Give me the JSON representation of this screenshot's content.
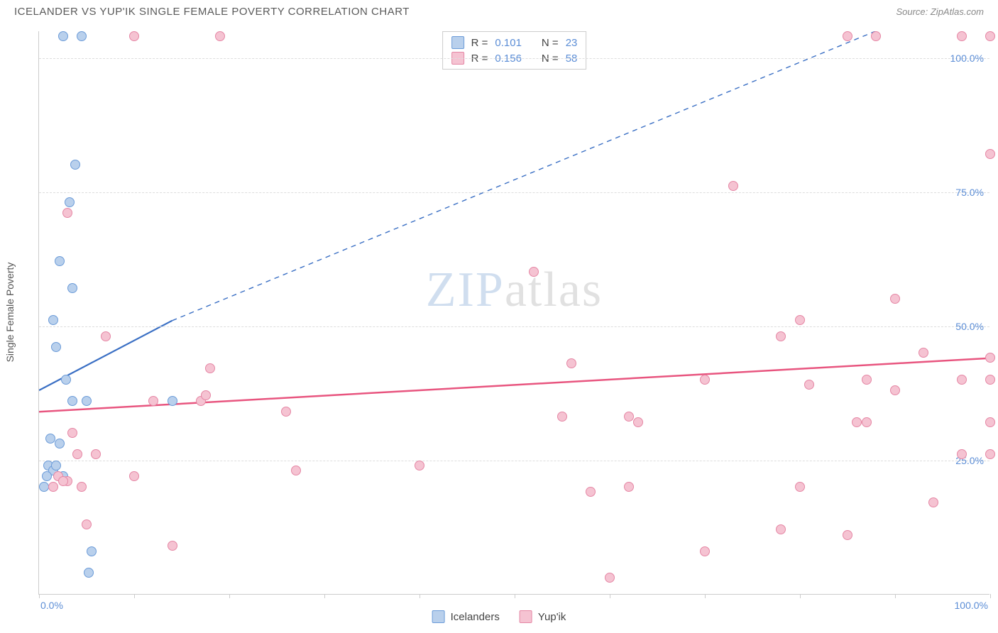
{
  "title": "ICELANDER VS YUP'IK SINGLE FEMALE POVERTY CORRELATION CHART",
  "source_label": "Source: ZipAtlas.com",
  "y_axis_label": "Single Female Poverty",
  "watermark": {
    "part1": "ZIP",
    "part2": "atlas"
  },
  "chart": {
    "type": "scatter",
    "xlim": [
      0,
      100
    ],
    "ylim": [
      0,
      105
    ],
    "x_ticks": [
      0,
      50,
      100
    ],
    "x_tick_labels": [
      "0.0%",
      "",
      "100.0%"
    ],
    "x_minor_ticks": [
      10,
      20,
      30,
      40,
      60,
      70,
      80,
      90
    ],
    "y_ticks": [
      25,
      50,
      75,
      100
    ],
    "y_tick_labels": [
      "25.0%",
      "50.0%",
      "75.0%",
      "100.0%"
    ],
    "grid_color": "#dddddd",
    "axis_color": "#cccccc",
    "background_color": "#ffffff",
    "tick_label_color": "#5b8dd6",
    "tick_label_fontsize": 14,
    "marker_radius": 7,
    "marker_stroke_width": 1.2,
    "marker_fill_opacity": 0.25
  },
  "series": [
    {
      "name": "Icelanders",
      "color_stroke": "#6b9bd8",
      "color_fill": "#b9d0ec",
      "trend_line": {
        "color": "#3a6fc4",
        "width": 2.2,
        "solid_from_x": 0,
        "solid_to_x": 14,
        "y_at_x0": 38,
        "y_at_x14": 51,
        "dashed_to_x": 88,
        "y_at_dashed_end": 105
      },
      "stats": {
        "R": "0.101",
        "N": "23"
      },
      "points": [
        [
          2.5,
          104
        ],
        [
          4.5,
          104
        ],
        [
          3.8,
          80
        ],
        [
          3.2,
          73
        ],
        [
          2.2,
          62
        ],
        [
          3.5,
          57
        ],
        [
          1.5,
          51
        ],
        [
          1.8,
          46
        ],
        [
          2.8,
          40
        ],
        [
          3.5,
          36
        ],
        [
          5,
          36
        ],
        [
          14,
          36
        ],
        [
          1.2,
          29
        ],
        [
          2.2,
          28
        ],
        [
          1.0,
          24
        ],
        [
          1.5,
          23
        ],
        [
          0.8,
          22
        ],
        [
          1.8,
          24
        ],
        [
          2.5,
          22
        ],
        [
          0.5,
          20
        ],
        [
          5.5,
          8
        ],
        [
          5.2,
          4
        ]
      ]
    },
    {
      "name": "Yup'ik",
      "color_stroke": "#e586a4",
      "color_fill": "#f5c3d2",
      "trend_line": {
        "color": "#e8557f",
        "width": 2.5,
        "solid_from_x": 0,
        "solid_to_x": 100,
        "y_at_x0": 34,
        "y_at_x100": 44
      },
      "stats": {
        "R": "0.156",
        "N": "58"
      },
      "points": [
        [
          10,
          104
        ],
        [
          19,
          104
        ],
        [
          85,
          104
        ],
        [
          88,
          104
        ],
        [
          97,
          104
        ],
        [
          100,
          104
        ],
        [
          3.0,
          71
        ],
        [
          100,
          82
        ],
        [
          73,
          76
        ],
        [
          7,
          48
        ],
        [
          52,
          60
        ],
        [
          90,
          55
        ],
        [
          18,
          42
        ],
        [
          12,
          36
        ],
        [
          17,
          36
        ],
        [
          17.5,
          37
        ],
        [
          26,
          34
        ],
        [
          56,
          43
        ],
        [
          62,
          33
        ],
        [
          63,
          32
        ],
        [
          70,
          40
        ],
        [
          78,
          48
        ],
        [
          80,
          51
        ],
        [
          81,
          39
        ],
        [
          87,
          40
        ],
        [
          90,
          38
        ],
        [
          93,
          45
        ],
        [
          97,
          40
        ],
        [
          100,
          40
        ],
        [
          100,
          44
        ],
        [
          3.5,
          30
        ],
        [
          4,
          26
        ],
        [
          2,
          22
        ],
        [
          3,
          21
        ],
        [
          1.5,
          20
        ],
        [
          2.5,
          21
        ],
        [
          4.5,
          20
        ],
        [
          6,
          26
        ],
        [
          10,
          22
        ],
        [
          27,
          23
        ],
        [
          40,
          24
        ],
        [
          58,
          19
        ],
        [
          62,
          20
        ],
        [
          70,
          8
        ],
        [
          78,
          12
        ],
        [
          80,
          20
        ],
        [
          86,
          32
        ],
        [
          87,
          32
        ],
        [
          85,
          11
        ],
        [
          94,
          17
        ],
        [
          97,
          26
        ],
        [
          100,
          32
        ],
        [
          100,
          26
        ],
        [
          5,
          13
        ],
        [
          14,
          9
        ],
        [
          60,
          3
        ],
        [
          55,
          33
        ]
      ]
    }
  ],
  "legend": {
    "series1_label": "Icelanders",
    "series2_label": "Yup'ik"
  },
  "stats_labels": {
    "R": "R =",
    "N": "N ="
  }
}
